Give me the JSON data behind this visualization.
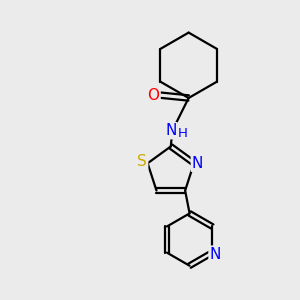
{
  "background_color": "#ebebeb",
  "bond_color": "#000000",
  "atom_colors": {
    "O": "#ff0000",
    "N": "#0000ff",
    "S": "#ccaa00"
  },
  "figsize": [
    3.0,
    3.0
  ],
  "dpi": 100
}
